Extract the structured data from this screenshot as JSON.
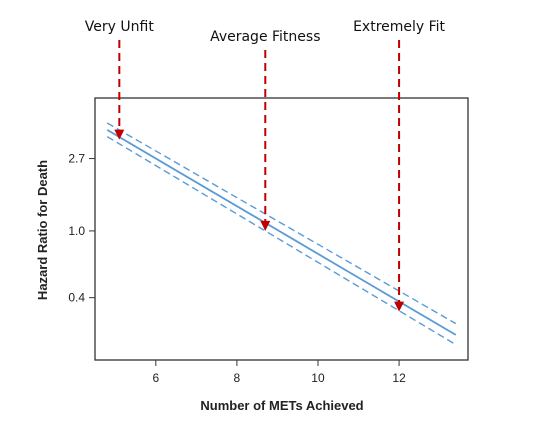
{
  "chart_data": {
    "type": "line",
    "xlabel": "Number of METs Achieved",
    "ylabel": "Hazard Ratio for Death",
    "y_scale": "log",
    "xlim": [
      4.5,
      13.7
    ],
    "ylim": [
      0.17,
      6.2
    ],
    "x_ticks": [
      6,
      8,
      10,
      12
    ],
    "y_ticks": [
      {
        "value": 2.7,
        "label": "2.7"
      },
      {
        "value": 1.0,
        "label": "1.0"
      },
      {
        "value": 0.4,
        "label": "0.4"
      }
    ],
    "series": [
      {
        "role": "estimate",
        "style": "solid",
        "x": [
          4.8,
          13.4
        ],
        "y": [
          4.0,
          0.24
        ]
      },
      {
        "role": "upper_ci",
        "style": "dashed",
        "x": [
          4.8,
          13.4
        ],
        "y": [
          4.4,
          0.28
        ]
      },
      {
        "role": "lower_ci",
        "style": "dashed",
        "x": [
          4.8,
          13.4
        ],
        "y": [
          3.65,
          0.21
        ]
      }
    ],
    "annotations": [
      {
        "text": "Very Unfit",
        "x": 5.1,
        "y": 3.5
      },
      {
        "text": "Average Fitness",
        "x": 8.7,
        "y": 1.0
      },
      {
        "text": "Extremely Fit",
        "x": 12.0,
        "y": 0.33
      }
    ],
    "grid": false
  },
  "colors": {
    "line": "#5b9bd5",
    "arrow": "#c00000",
    "frame": "#333333",
    "text": "#222222"
  }
}
